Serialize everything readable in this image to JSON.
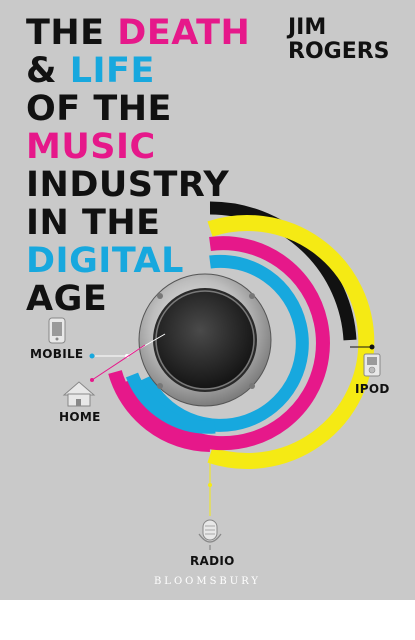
{
  "cover": {
    "title_lines": [
      [
        "THE ",
        "DEATH"
      ],
      [
        "& ",
        "LIFE"
      ],
      [
        "OF THE",
        ""
      ],
      [
        "",
        "MUSIC"
      ],
      [
        "INDUSTRY",
        ""
      ],
      [
        "IN THE",
        ""
      ],
      [
        "",
        "DIGITAL"
      ],
      [
        "AGE",
        ""
      ]
    ],
    "author_first": "JIM",
    "author_last": "ROGERS",
    "labels": {
      "mobile": "MOBILE",
      "home": "HOME",
      "ipod": "IPOD",
      "radio": "RADIO"
    },
    "publisher": "BLOOMSBURY",
    "colors": {
      "background": "#c9c9c9",
      "magenta": "#e6188a",
      "cyan": "#17a8de",
      "yellow": "#f5ea14",
      "black": "#111111"
    }
  }
}
